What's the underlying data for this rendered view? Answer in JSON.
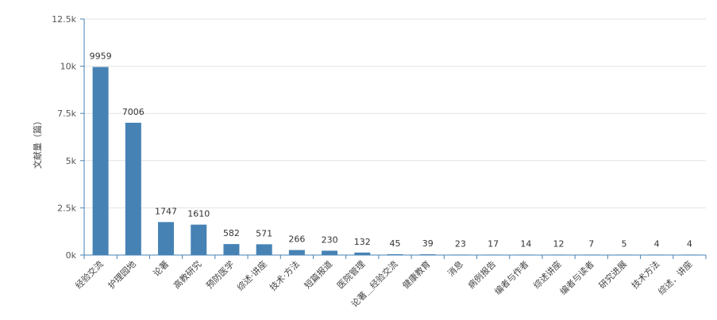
{
  "chart_data": {
    "type": "bar",
    "ylabel": "文献量（篇）",
    "categories": [
      "经验交流",
      "护理园地",
      "论著",
      "高教研究",
      "预防医学",
      "综述·讲座",
      "技术·方法",
      "短篇报道",
      "医院管理",
      "论著＿经验交流",
      "健康教育",
      "消息",
      "病例报告",
      "编者与作者",
      "综述讲座",
      "编者与读者",
      "研究进展",
      "技术方法",
      "综述．讲座"
    ],
    "values": [
      9959,
      7006,
      1747,
      1610,
      582,
      571,
      266,
      230,
      132,
      45,
      39,
      23,
      17,
      14,
      12,
      7,
      5,
      4,
      4
    ],
    "ylim": [
      0,
      12500
    ],
    "yticks": [
      {
        "value": 0,
        "label": "0k"
      },
      {
        "value": 2500,
        "label": "2.5k"
      },
      {
        "value": 5000,
        "label": "5k"
      },
      {
        "value": 7500,
        "label": "7.5k"
      },
      {
        "value": 10000,
        "label": "10k"
      },
      {
        "value": 12500,
        "label": "12.5k"
      }
    ],
    "grid": true,
    "bar_color": "#4682b4"
  }
}
